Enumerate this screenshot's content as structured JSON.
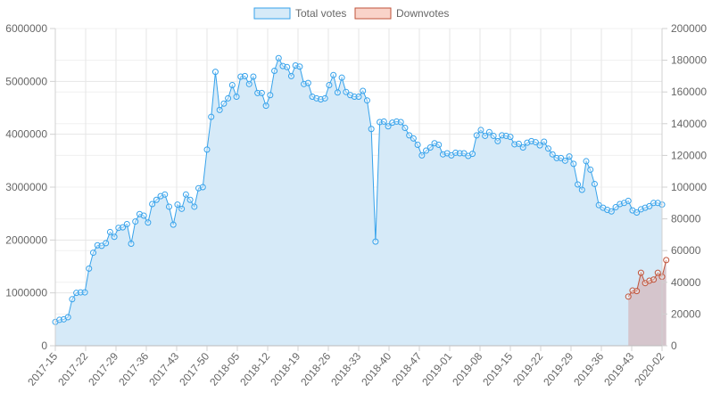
{
  "chart_data": {
    "type": "line",
    "legend_position": "top",
    "grid": true,
    "x_labels": [
      "2017-15",
      "2017-22",
      "2017-29",
      "2017-36",
      "2017-43",
      "2017-50",
      "2018-05",
      "2018-12",
      "2018-19",
      "2018-26",
      "2018-33",
      "2018-40",
      "2018-47",
      "2019-01",
      "2019-08",
      "2019-15",
      "2019-22",
      "2019-29",
      "2019-36",
      "2019-43",
      "2020-02"
    ],
    "y_left": {
      "range": [
        0,
        6000000
      ],
      "ticks": [
        "0",
        "1000000",
        "2000000",
        "3000000",
        "4000000",
        "5000000",
        "6000000"
      ]
    },
    "y_right": {
      "range": [
        0,
        200000
      ],
      "ticks": [
        "0",
        "20000",
        "40000",
        "60000",
        "80000",
        "100000",
        "120000",
        "140000",
        "160000",
        "180000",
        "200000"
      ]
    },
    "series": [
      {
        "name": "Total votes",
        "axis": "left",
        "color": "#36a2eb",
        "fill": "#d6eaf8",
        "x_start_week": 0,
        "values": [
          450000,
          490000,
          500000,
          540000,
          880000,
          1000000,
          1010000,
          1010000,
          1460000,
          1760000,
          1900000,
          1890000,
          1940000,
          2150000,
          2060000,
          2230000,
          2240000,
          2300000,
          1930000,
          2350000,
          2490000,
          2460000,
          2330000,
          2680000,
          2760000,
          2830000,
          2860000,
          2630000,
          2290000,
          2670000,
          2590000,
          2860000,
          2760000,
          2630000,
          2980000,
          3000000,
          3710000,
          4330000,
          5180000,
          4460000,
          4580000,
          4680000,
          4930000,
          4710000,
          5090000,
          5100000,
          4950000,
          5090000,
          4780000,
          4780000,
          4540000,
          4740000,
          5200000,
          5440000,
          5290000,
          5270000,
          5100000,
          5300000,
          5280000,
          4950000,
          4970000,
          4710000,
          4680000,
          4660000,
          4680000,
          4930000,
          5120000,
          4790000,
          5070000,
          4800000,
          4740000,
          4710000,
          4710000,
          4820000,
          4640000,
          4100000,
          1970000,
          4230000,
          4240000,
          4150000,
          4220000,
          4240000,
          4230000,
          4120000,
          3980000,
          3920000,
          3800000,
          3600000,
          3690000,
          3750000,
          3830000,
          3800000,
          3620000,
          3640000,
          3600000,
          3650000,
          3640000,
          3640000,
          3590000,
          3630000,
          3980000,
          4080000,
          3970000,
          4040000,
          3970000,
          3870000,
          3980000,
          3970000,
          3950000,
          3810000,
          3820000,
          3750000,
          3840000,
          3870000,
          3850000,
          3790000,
          3860000,
          3730000,
          3620000,
          3550000,
          3550000,
          3500000,
          3580000,
          3440000,
          3050000,
          2950000,
          3490000,
          3330000,
          3060000,
          2660000,
          2610000,
          2570000,
          2540000,
          2620000,
          2680000,
          2700000,
          2740000,
          2560000,
          2520000,
          2580000,
          2610000,
          2640000,
          2700000,
          2700000,
          2670000
        ]
      },
      {
        "name": "Downvotes",
        "axis": "right",
        "color": "#c0533a",
        "fill": "#d5c5cc",
        "x_start_week": 136,
        "values": [
          31000,
          34800,
          34500,
          46000,
          39500,
          41000,
          41700,
          46000,
          43500,
          54000
        ]
      }
    ]
  }
}
